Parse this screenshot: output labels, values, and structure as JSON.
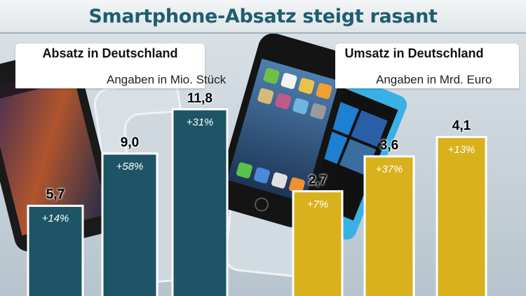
{
  "title": "Smartphone-Absatz steigt rasant",
  "colors": {
    "sales_bar": "#1d5466",
    "revenue_bar": "#d9b11c",
    "title_text": "#1f5d6e"
  },
  "chart_data": [
    {
      "type": "bar",
      "title": "Absatz in Deutschland",
      "unit": "Angaben in Mio. Stück",
      "categories": [
        "",
        "",
        ""
      ],
      "values": [
        5.7,
        9.0,
        11.8
      ],
      "value_labels": [
        "5,7",
        "9,0",
        "11,8"
      ],
      "change_labels": [
        "+14%",
        "+58%",
        "+31%"
      ],
      "ylim": [
        0,
        12.5
      ],
      "grid": false
    },
    {
      "type": "bar",
      "title": "Umsatz in Deutschland",
      "unit": "Angaben in Mrd. Euro",
      "categories": [
        "",
        "",
        ""
      ],
      "values": [
        2.7,
        3.6,
        4.1
      ],
      "value_labels": [
        "2,7",
        "3,6",
        "4,1"
      ],
      "change_labels": [
        "+7%",
        "+37%",
        "+13%"
      ],
      "ylim": [
        0,
        5.1
      ],
      "grid": false
    }
  ]
}
